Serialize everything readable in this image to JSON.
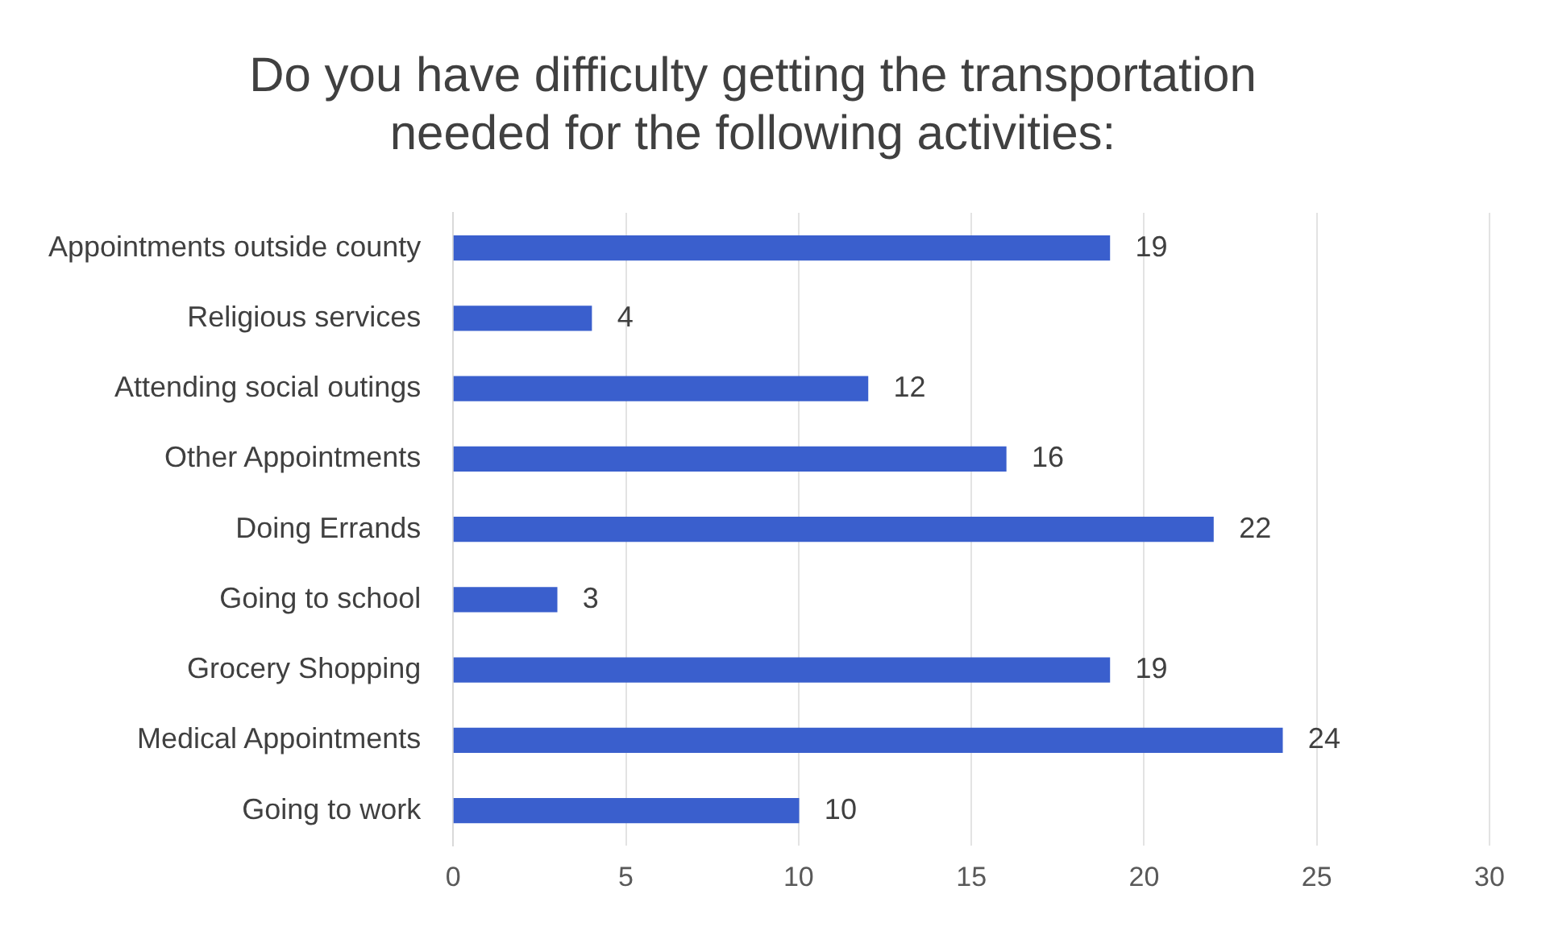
{
  "chart_data": {
    "type": "bar",
    "orientation": "horizontal",
    "title": "Do you have difficulty getting the transportation needed for the following activities:",
    "categories": [
      "Appointments outside county",
      "Religious services",
      "Attending social outings",
      "Other Appointments",
      "Doing Errands",
      "Going to school",
      "Grocery Shopping",
      "Medical Appointments",
      "Going to work"
    ],
    "values": [
      19,
      4,
      12,
      16,
      22,
      3,
      19,
      24,
      10
    ],
    "color": "#3a5fcd",
    "xlim": [
      0,
      30
    ],
    "xticks": [
      0,
      5,
      10,
      15,
      20,
      25,
      30
    ],
    "grid": "x",
    "data_labels": true
  }
}
